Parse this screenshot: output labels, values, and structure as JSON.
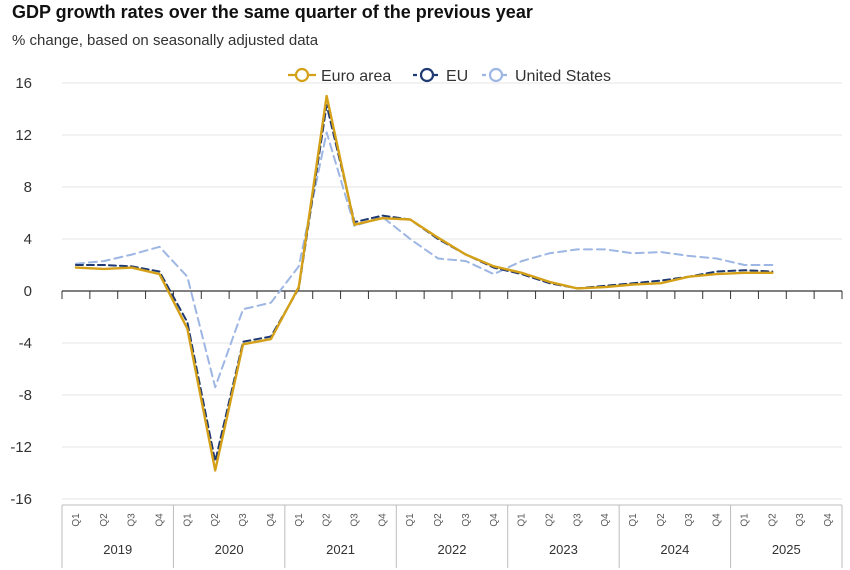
{
  "chart_data": {
    "type": "line",
    "title": "GDP growth rates over the same quarter of the previous year",
    "subtitle": "% change, based on seasonally adjusted data",
    "ylim": [
      -16,
      16
    ],
    "yticks": [
      16,
      12,
      8,
      4,
      0,
      -4,
      -8,
      -12,
      -16
    ],
    "years": [
      "2019",
      "2020",
      "2021",
      "2022",
      "2023",
      "2024",
      "2025"
    ],
    "quarters": [
      "Q1",
      "Q2",
      "Q3",
      "Q4"
    ],
    "grid": true,
    "legend_position": "top-center",
    "series": [
      {
        "name": "Euro area",
        "color": "#D4A017",
        "style": "solid",
        "values": [
          1.8,
          1.7,
          1.8,
          1.3,
          -2.9,
          -13.8,
          -4.1,
          -3.7,
          0.3,
          15.0,
          5.1,
          5.6,
          5.5,
          4.1,
          2.8,
          1.9,
          1.4,
          0.7,
          0.2,
          0.3,
          0.5,
          0.6,
          1.1,
          1.3,
          1.4,
          1.4,
          null,
          null
        ]
      },
      {
        "name": "EU",
        "color": "#1F3A73",
        "style": "dashed",
        "values": [
          2.0,
          2.0,
          1.9,
          1.5,
          -2.4,
          -13.1,
          -3.9,
          -3.5,
          0.2,
          14.3,
          5.3,
          5.8,
          5.5,
          4.0,
          2.8,
          1.8,
          1.3,
          0.6,
          0.2,
          0.4,
          0.6,
          0.8,
          1.1,
          1.5,
          1.6,
          1.5,
          null,
          null
        ]
      },
      {
        "name": "United States",
        "color": "#9DB6E3",
        "style": "dashed",
        "values": [
          2.1,
          2.3,
          2.8,
          3.4,
          1.1,
          -7.4,
          -1.4,
          -0.9,
          1.9,
          12.2,
          5.0,
          5.7,
          4.0,
          2.5,
          2.3,
          1.3,
          2.3,
          2.9,
          3.2,
          3.2,
          2.9,
          3.0,
          2.7,
          2.5,
          2.0,
          2.0,
          null,
          null
        ]
      }
    ]
  }
}
